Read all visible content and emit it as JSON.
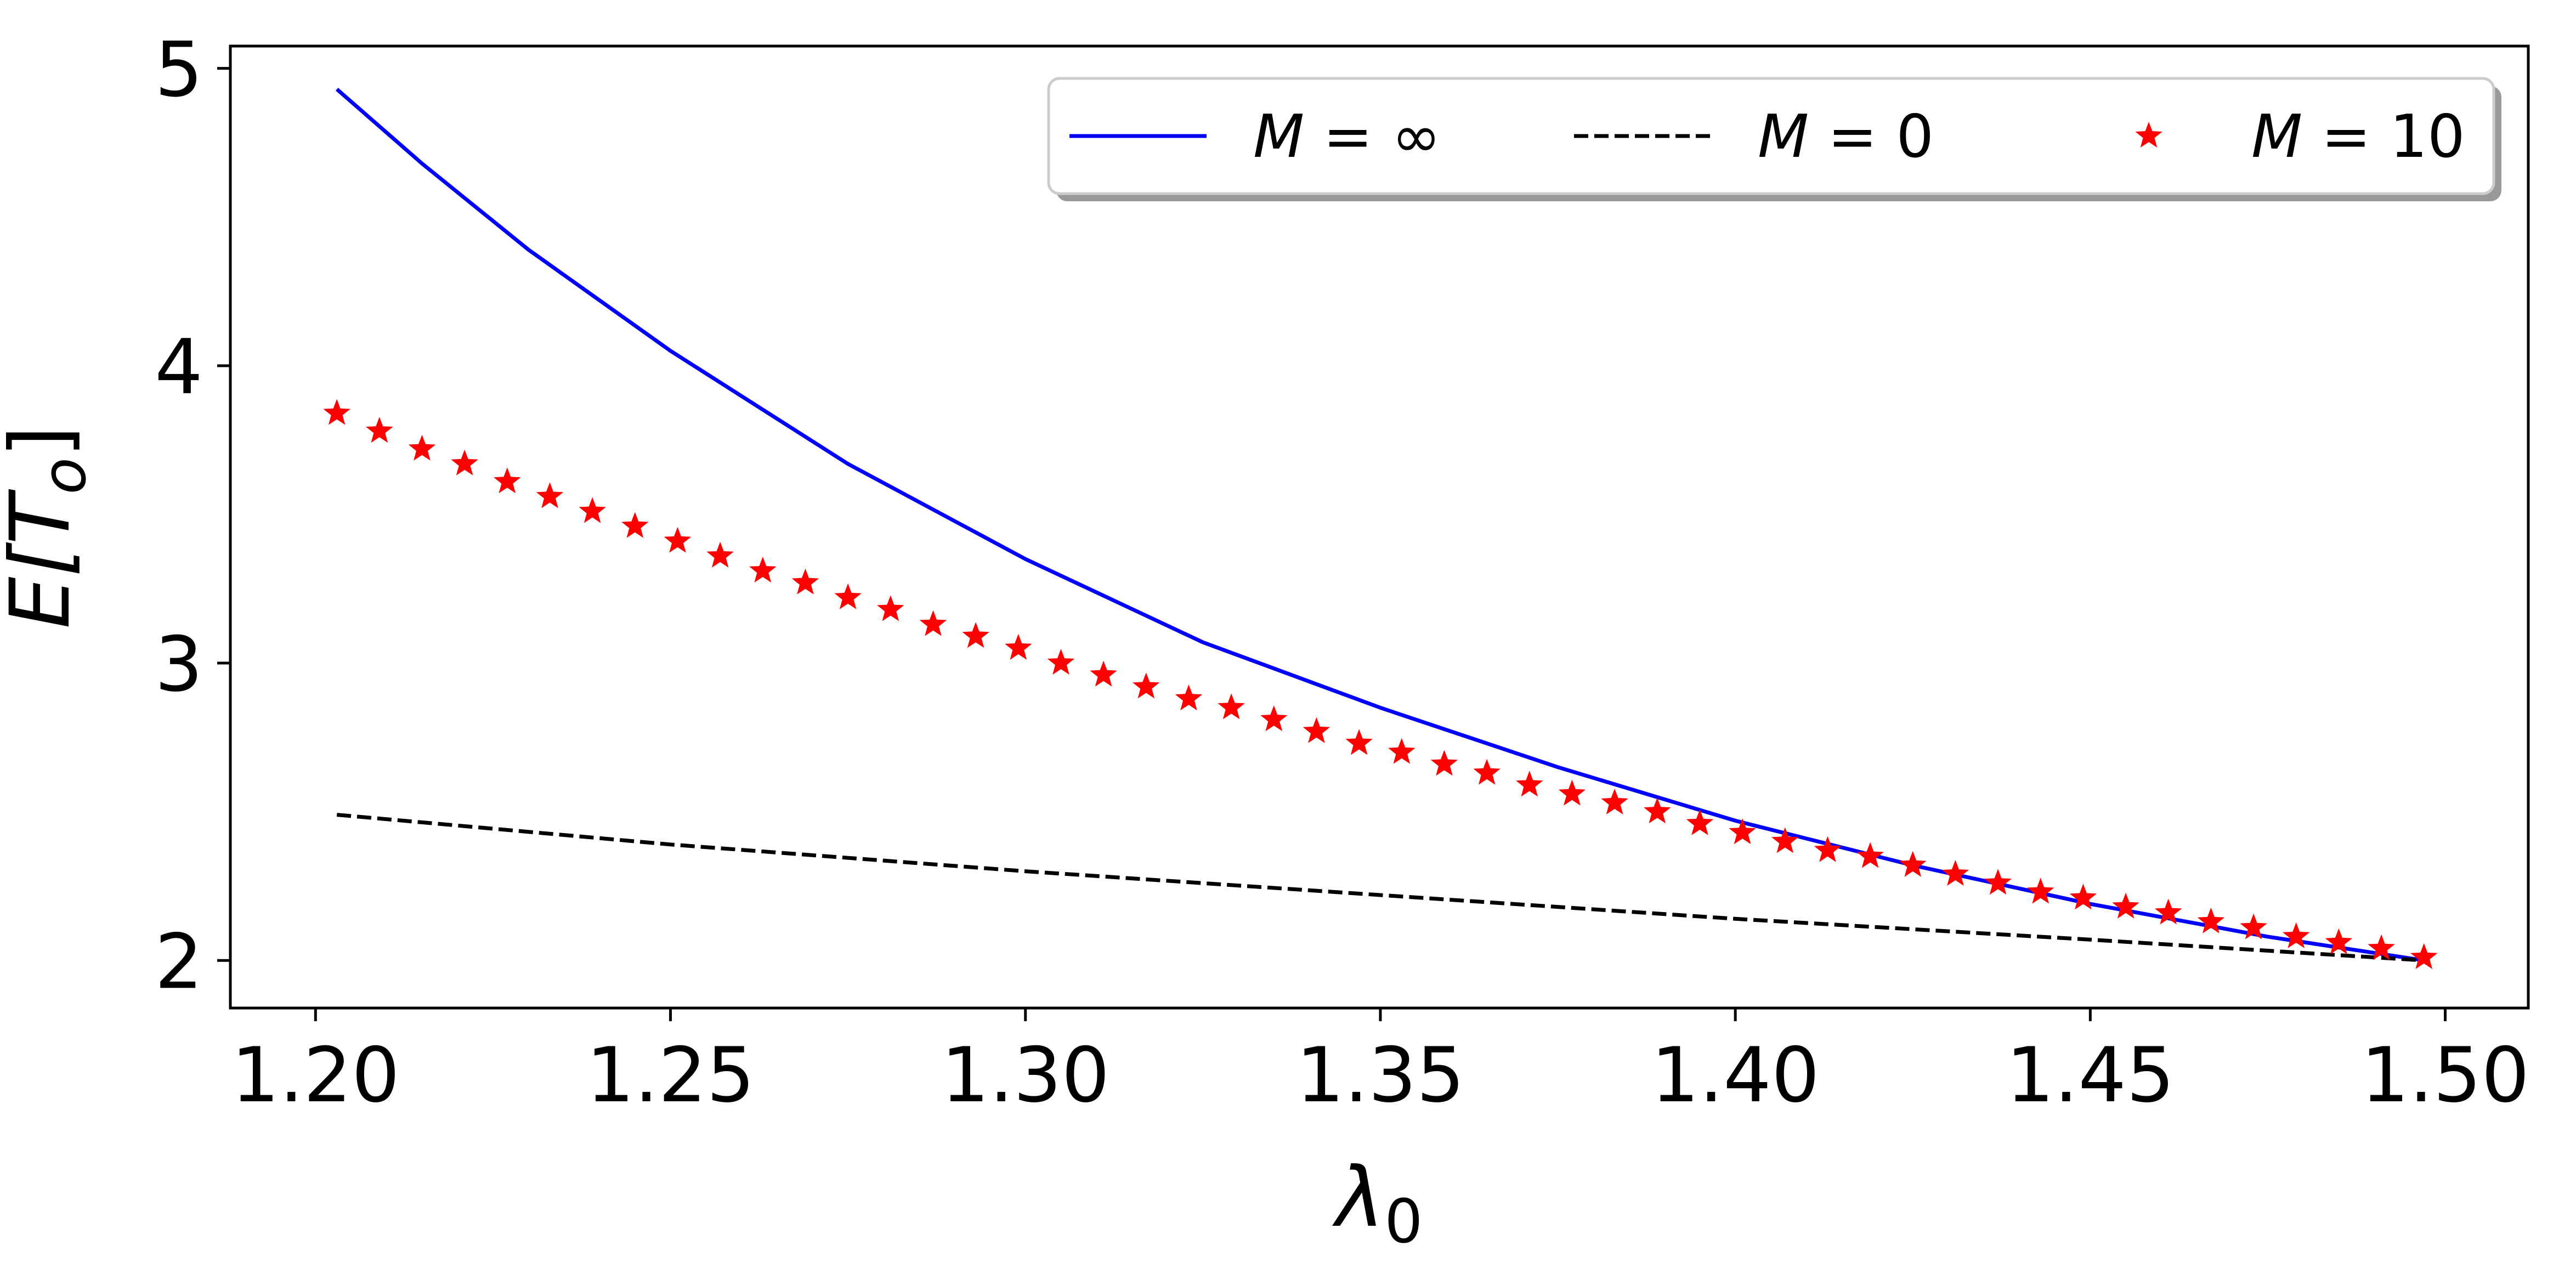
{
  "chart_data": {
    "type": "line",
    "title": "",
    "xlabel": "λ",
    "xlabel_subscript": "0",
    "ylabel": "E[T",
    "ylabel_subscript": "o",
    "ylabel_close": "]",
    "xlim": [
      1.188,
      1.5117
    ],
    "ylim": [
      1.84,
      5.075
    ],
    "xticks": [
      1.2,
      1.25,
      1.3,
      1.35,
      1.4,
      1.45,
      1.5
    ],
    "xtick_labels": [
      "1.20",
      "1.25",
      "1.30",
      "1.35",
      "1.40",
      "1.45",
      "1.50"
    ],
    "yticks": [
      2,
      3,
      4,
      5
    ],
    "ytick_labels": [
      "2",
      "3",
      "4",
      "5"
    ],
    "legend_position": "top-right",
    "series": [
      {
        "name": "M = ∞",
        "legend_var": "M",
        "legend_eq": " = ",
        "legend_val": "∞",
        "style": "solid",
        "color": "#0000ff",
        "x": [
          1.203,
          1.215,
          1.23,
          1.25,
          1.275,
          1.3,
          1.325,
          1.35,
          1.375,
          1.4,
          1.425,
          1.45,
          1.475,
          1.497
        ],
        "values": [
          4.93,
          4.68,
          4.39,
          4.05,
          3.67,
          3.35,
          3.07,
          2.85,
          2.65,
          2.47,
          2.32,
          2.19,
          2.08,
          2.0
        ]
      },
      {
        "name": "M = 0",
        "legend_var": "M",
        "legend_eq": " = ",
        "legend_val": "0",
        "style": "dashed",
        "color": "#000000",
        "x": [
          1.203,
          1.25,
          1.3,
          1.35,
          1.4,
          1.45,
          1.497
        ],
        "values": [
          2.49,
          2.39,
          2.3,
          2.22,
          2.14,
          2.07,
          2.0
        ]
      },
      {
        "name": "M = 10",
        "legend_var": "M",
        "legend_eq": " = ",
        "legend_val": "10",
        "style": "star-markers",
        "color": "#ff0000",
        "x": [
          1.203,
          1.209,
          1.215,
          1.221,
          1.227,
          1.233,
          1.239,
          1.245,
          1.251,
          1.257,
          1.263,
          1.269,
          1.275,
          1.281,
          1.287,
          1.293,
          1.299,
          1.305,
          1.311,
          1.317,
          1.323,
          1.329,
          1.335,
          1.341,
          1.347,
          1.353,
          1.359,
          1.365,
          1.371,
          1.377,
          1.383,
          1.389,
          1.395,
          1.401,
          1.407,
          1.413,
          1.419,
          1.425,
          1.431,
          1.437,
          1.443,
          1.449,
          1.455,
          1.461,
          1.467,
          1.473,
          1.479,
          1.485,
          1.491,
          1.497
        ],
        "values": [
          3.84,
          3.78,
          3.72,
          3.67,
          3.61,
          3.56,
          3.51,
          3.46,
          3.41,
          3.36,
          3.31,
          3.27,
          3.22,
          3.18,
          3.13,
          3.09,
          3.05,
          3.0,
          2.96,
          2.92,
          2.88,
          2.85,
          2.81,
          2.77,
          2.73,
          2.7,
          2.66,
          2.63,
          2.59,
          2.56,
          2.53,
          2.5,
          2.46,
          2.43,
          2.4,
          2.37,
          2.35,
          2.32,
          2.29,
          2.26,
          2.23,
          2.21,
          2.18,
          2.16,
          2.13,
          2.11,
          2.08,
          2.06,
          2.04,
          2.01
        ]
      }
    ]
  }
}
